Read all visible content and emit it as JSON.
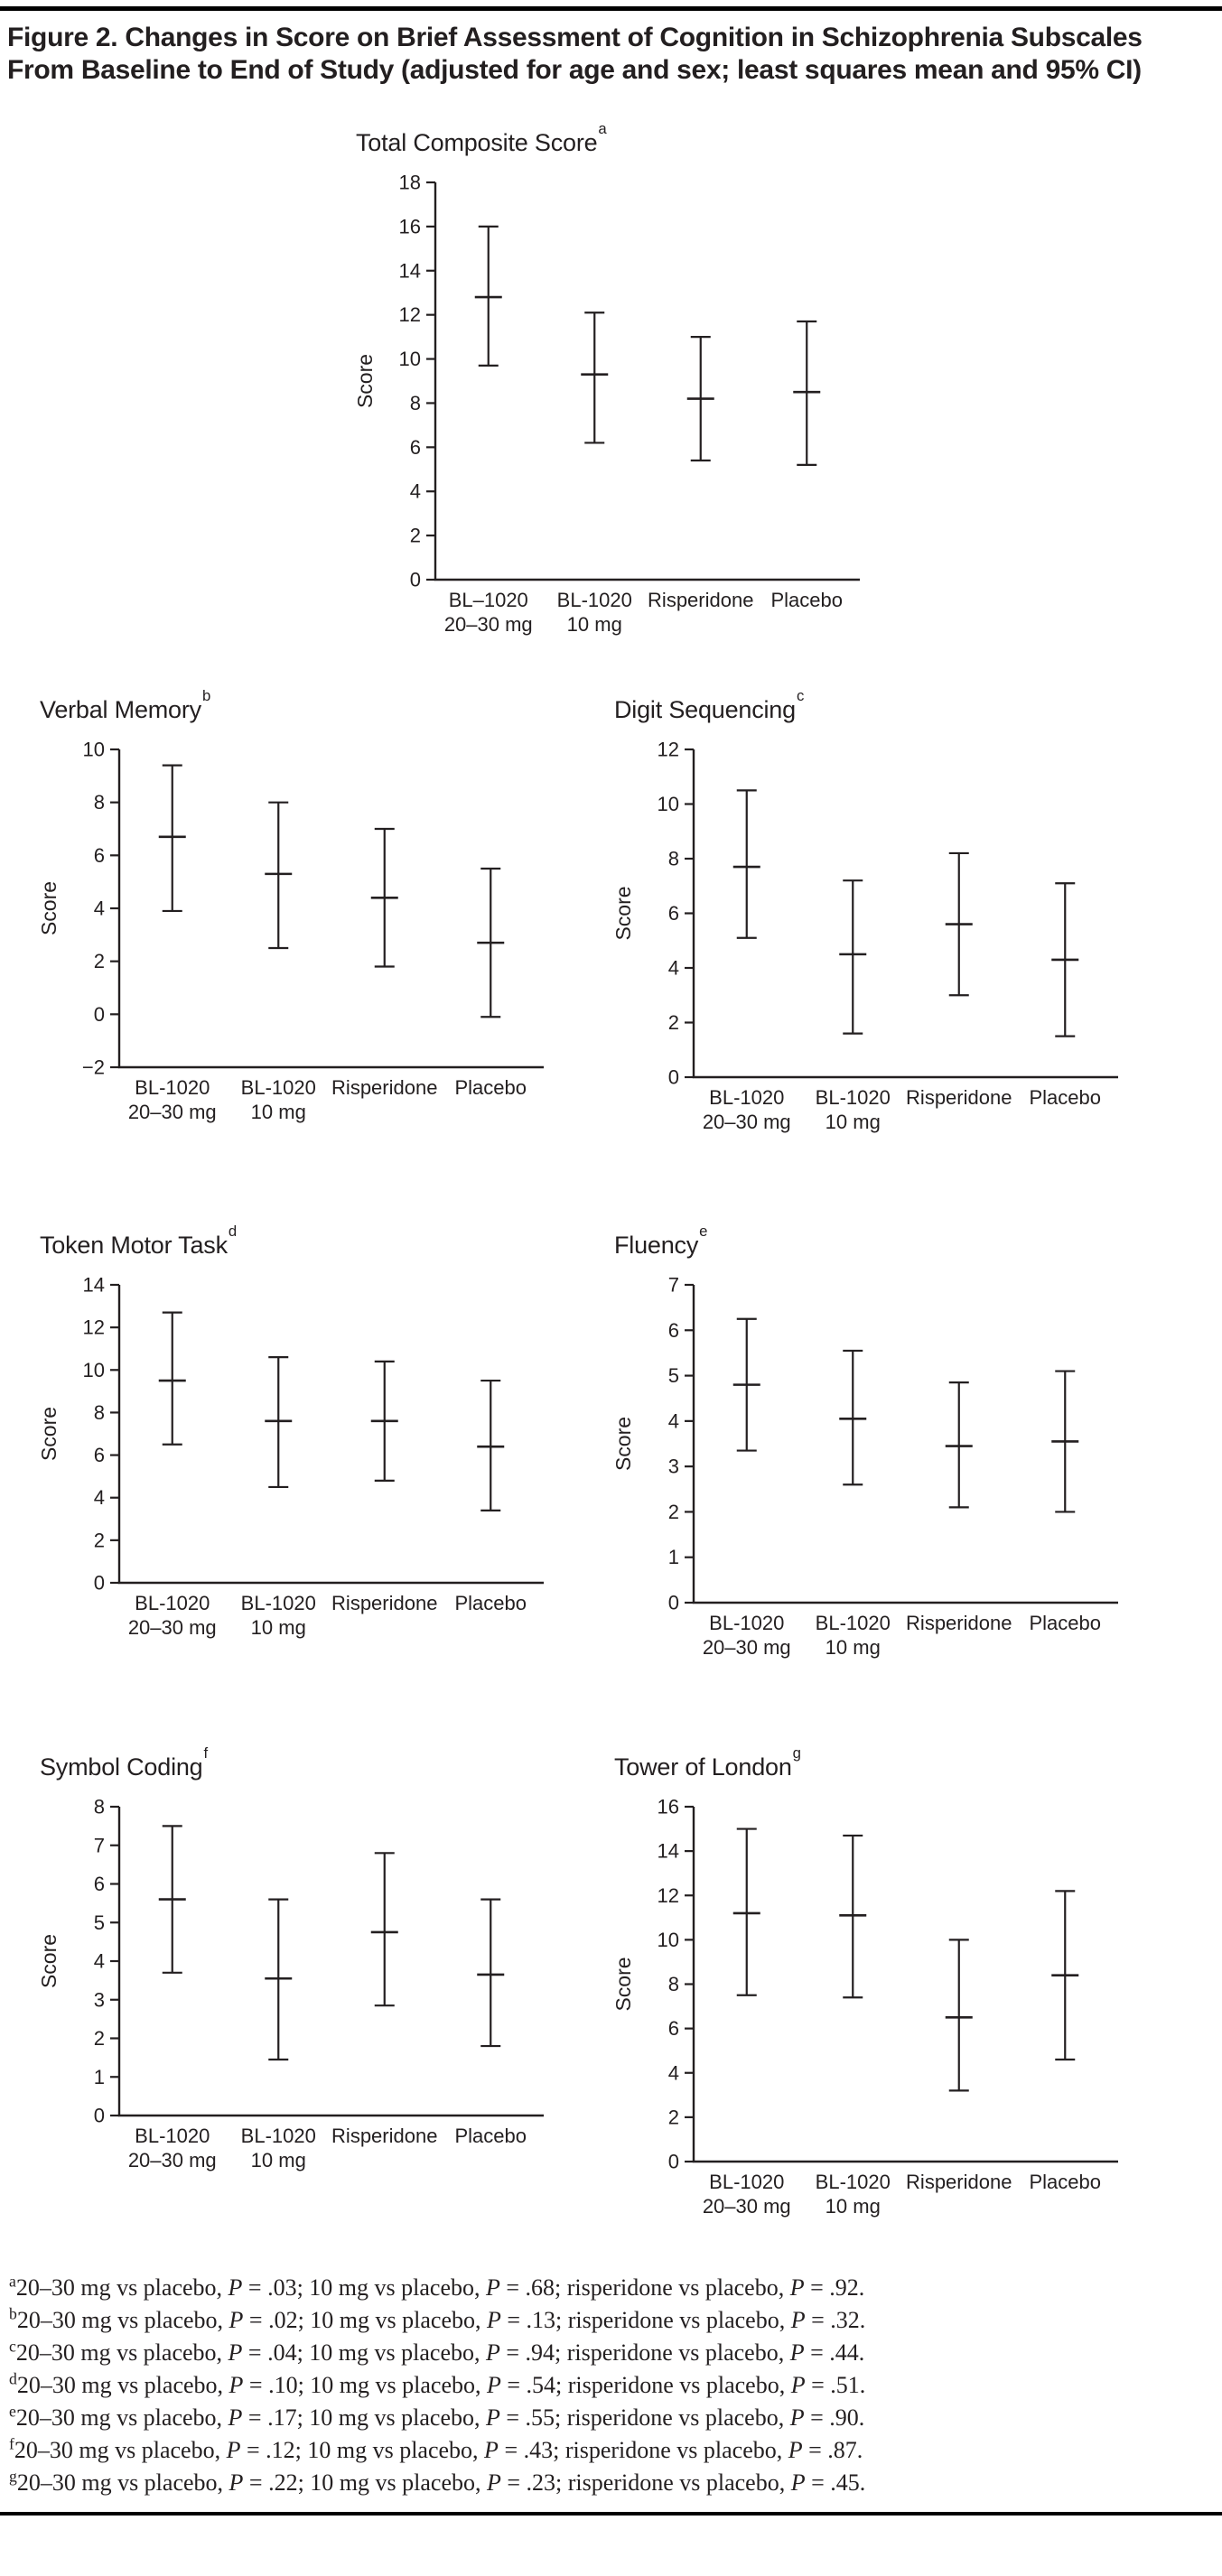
{
  "colors": {
    "ink": "#231f20",
    "rule": "#000000",
    "background": "#ffffff"
  },
  "figure": {
    "title": "Figure 2. Changes in Score on Brief Assessment of Cognition in Schizophrenia Subscales From Baseline to End of Study (adjusted for age and sex; least squares mean and 95% CI)"
  },
  "chart_data": [
    {
      "type": "errorbar",
      "title": "Total Composite Score",
      "superscript": "a",
      "ylabel": "Score",
      "ylim": [
        0,
        18
      ],
      "ytick_step": 2,
      "grid": false,
      "categories": [
        "BL–1020\n20–30 mg",
        "BL-1020\n10 mg",
        "Risperidone",
        "Placebo"
      ],
      "means": [
        12.8,
        9.3,
        8.2,
        8.5
      ],
      "ci_low": [
        9.7,
        6.2,
        5.4,
        5.2
      ],
      "ci_high": [
        16.0,
        12.1,
        11.0,
        11.7
      ]
    },
    {
      "type": "errorbar",
      "title": "Verbal Memory",
      "superscript": "b",
      "ylabel": "Score",
      "ylim": [
        -2,
        10
      ],
      "ytick_step": 2,
      "grid": false,
      "categories": [
        "BL-1020\n20–30 mg",
        "BL-1020\n10 mg",
        "Risperidone",
        "Placebo"
      ],
      "means": [
        6.7,
        5.3,
        4.4,
        2.7
      ],
      "ci_low": [
        3.9,
        2.5,
        1.8,
        -0.1
      ],
      "ci_high": [
        9.4,
        8.0,
        7.0,
        5.5
      ]
    },
    {
      "type": "errorbar",
      "title": "Digit Sequencing",
      "superscript": "c",
      "ylabel": "Score",
      "ylim": [
        0,
        12
      ],
      "ytick_step": 2,
      "grid": false,
      "categories": [
        "BL-1020\n20–30 mg",
        "BL-1020\n10 mg",
        "Risperidone",
        "Placebo"
      ],
      "means": [
        7.7,
        4.5,
        5.6,
        4.3
      ],
      "ci_low": [
        5.1,
        1.6,
        3.0,
        1.5
      ],
      "ci_high": [
        10.5,
        7.2,
        8.2,
        7.1
      ]
    },
    {
      "type": "errorbar",
      "title": "Token Motor Task",
      "superscript": "d",
      "ylabel": "Score",
      "ylim": [
        0,
        14
      ],
      "ytick_step": 2,
      "grid": false,
      "categories": [
        "BL-1020\n20–30 mg",
        "BL-1020\n10 mg",
        "Risperidone",
        "Placebo"
      ],
      "means": [
        9.5,
        7.6,
        7.6,
        6.4
      ],
      "ci_low": [
        6.5,
        4.5,
        4.8,
        3.4
      ],
      "ci_high": [
        12.7,
        10.6,
        10.4,
        9.5
      ]
    },
    {
      "type": "errorbar",
      "title": "Fluency",
      "superscript": "e",
      "ylabel": "Score",
      "ylim": [
        0,
        7
      ],
      "ytick_step": 1,
      "grid": false,
      "categories": [
        "BL-1020\n20–30 mg",
        "BL-1020\n10 mg",
        "Risperidone",
        "Placebo"
      ],
      "means": [
        4.8,
        4.05,
        3.45,
        3.55
      ],
      "ci_low": [
        3.35,
        2.6,
        2.1,
        2.0
      ],
      "ci_high": [
        6.25,
        5.55,
        4.85,
        5.1
      ]
    },
    {
      "type": "errorbar",
      "title": "Symbol Coding",
      "superscript": "f",
      "ylabel": "Score",
      "ylim": [
        0,
        8
      ],
      "ytick_step": 1,
      "grid": false,
      "categories": [
        "BL-1020\n20–30 mg",
        "BL-1020\n10 mg",
        "Risperidone",
        "Placebo"
      ],
      "means": [
        5.6,
        3.55,
        4.75,
        3.65
      ],
      "ci_low": [
        3.7,
        1.45,
        2.85,
        1.8
      ],
      "ci_high": [
        7.5,
        5.6,
        6.8,
        5.6
      ]
    },
    {
      "type": "errorbar",
      "title": "Tower of London",
      "superscript": "g",
      "ylabel": "Score",
      "ylim": [
        0,
        16
      ],
      "ytick_step": 2,
      "grid": false,
      "categories": [
        "BL-1020\n20–30 mg",
        "BL-1020\n10 mg",
        "Risperidone",
        "Placebo"
      ],
      "means": [
        11.2,
        11.1,
        6.5,
        8.4
      ],
      "ci_low": [
        7.5,
        7.4,
        3.2,
        4.6
      ],
      "ci_high": [
        15.0,
        14.7,
        10.0,
        12.2
      ]
    }
  ],
  "footnotes": [
    {
      "marker": "a",
      "text": "20–30 mg vs placebo, P = .03; 10 mg vs placebo, P = .68; risperidone vs placebo, P = .92."
    },
    {
      "marker": "b",
      "text": "20–30 mg vs placebo, P = .02; 10 mg vs placebo, P = .13; risperidone vs placebo, P = .32."
    },
    {
      "marker": "c",
      "text": "20–30 mg vs placebo, P = .04; 10 mg vs placebo, P = .94; risperidone vs placebo, P = .44."
    },
    {
      "marker": "d",
      "text": "20–30 mg vs placebo, P = .10; 10 mg vs placebo, P = .54; risperidone vs placebo, P = .51."
    },
    {
      "marker": "e",
      "text": "20–30 mg vs placebo, P = .17; 10 mg vs placebo, P = .55; risperidone vs placebo, P = .90."
    },
    {
      "marker": "f",
      "text": "20–30 mg vs placebo, P = .12; 10 mg vs placebo, P = .43; risperidone vs placebo, P = .87."
    },
    {
      "marker": "g",
      "text": "20–30 mg vs placebo, P = .22; 10 mg vs placebo, P = .23; risperidone vs placebo, P = .45."
    }
  ]
}
